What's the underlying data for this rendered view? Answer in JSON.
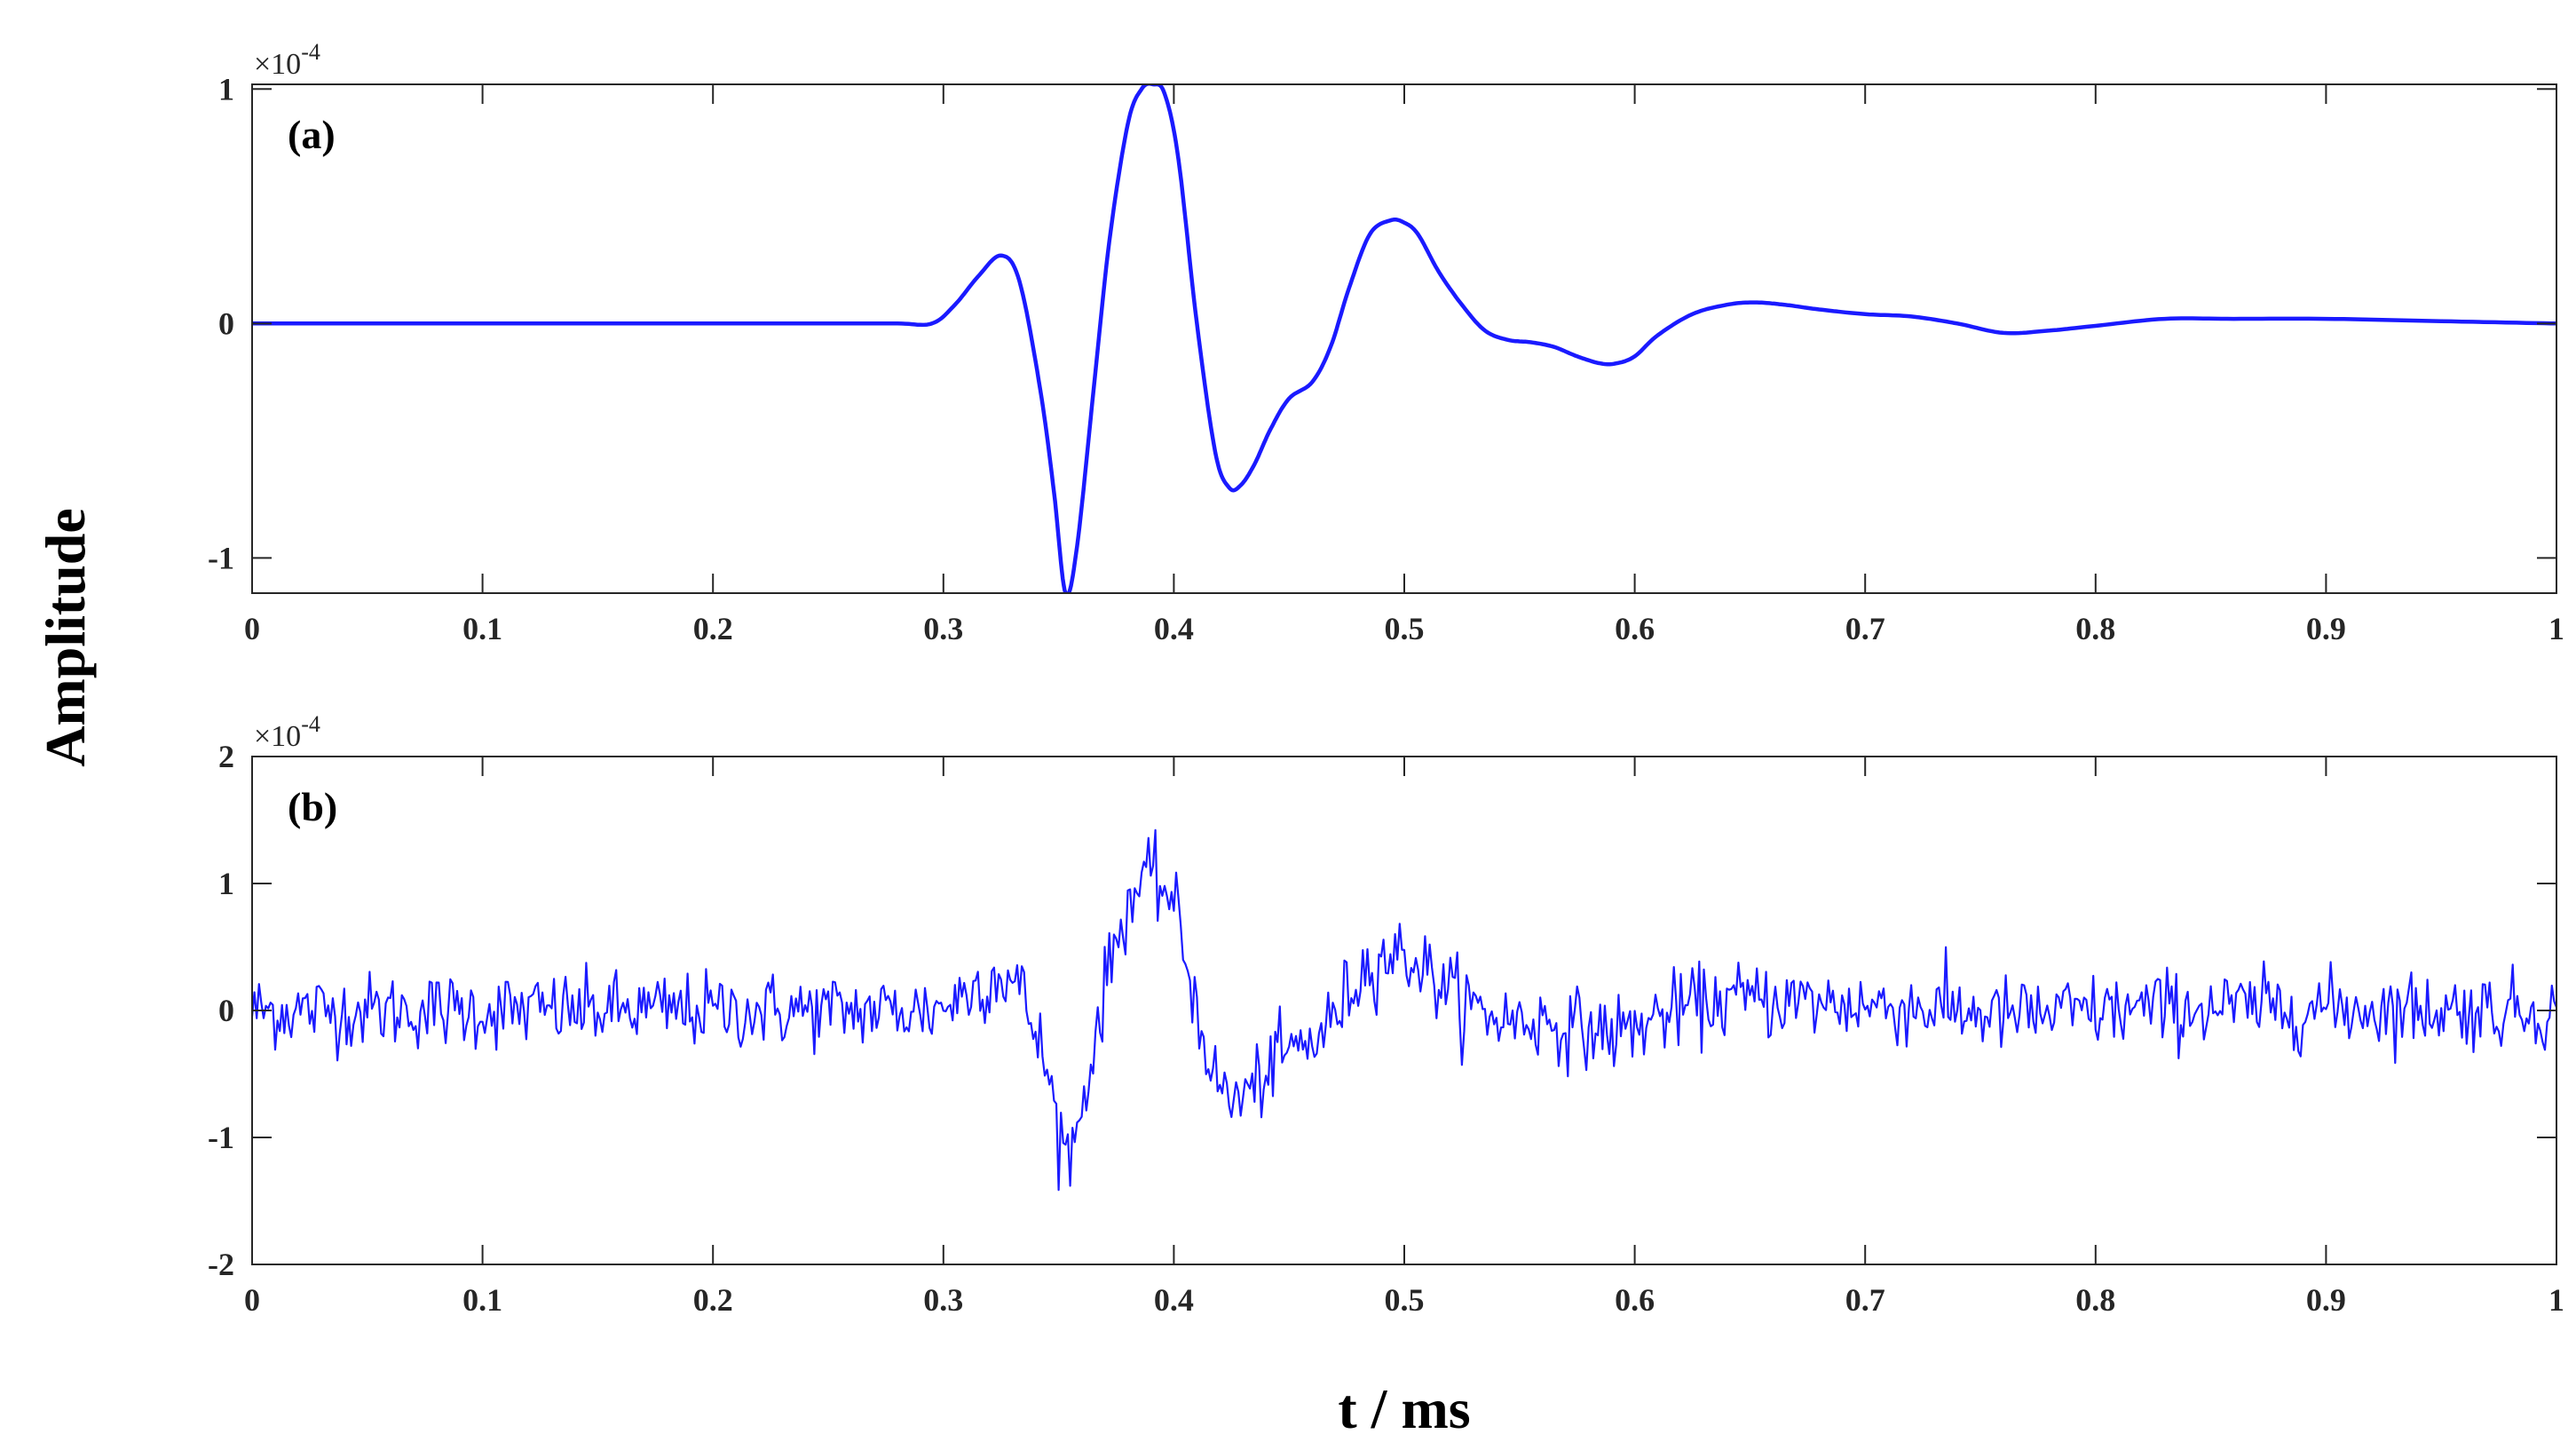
{
  "figure": {
    "ylabel": "Amplitude",
    "xlabel": "t / ms"
  },
  "chart_data": [
    {
      "type": "line",
      "panel_label": "(a)",
      "x_ticks": [
        "0",
        "0.1",
        "0.2",
        "0.3",
        "0.4",
        "0.5",
        "0.6",
        "0.7",
        "0.8",
        "0.9",
        "1"
      ],
      "y_ticks": [
        "-1",
        "0",
        "1"
      ],
      "y_exponent": {
        "base": "×10",
        "power": "-4"
      },
      "xlim": [
        0,
        1
      ],
      "ylim": [
        -1.15,
        1.02
      ],
      "grid": false,
      "series": [
        {
          "color": "#1a1aff",
          "x": [
            0,
            0.05,
            0.1,
            0.15,
            0.2,
            0.25,
            0.28,
            0.295,
            0.305,
            0.315,
            0.325,
            0.333,
            0.342,
            0.348,
            0.353,
            0.358,
            0.365,
            0.372,
            0.38,
            0.386,
            0.391,
            0.396,
            0.402,
            0.41,
            0.418,
            0.424,
            0.429,
            0.435,
            0.442,
            0.45,
            0.46,
            0.468,
            0.476,
            0.485,
            0.494,
            0.5,
            0.506,
            0.515,
            0.525,
            0.535,
            0.545,
            0.555,
            0.565,
            0.575,
            0.585,
            0.592,
            0.6,
            0.61,
            0.625,
            0.64,
            0.652,
            0.665,
            0.68,
            0.7,
            0.72,
            0.74,
            0.76,
            0.78,
            0.8,
            0.83,
            0.86,
            0.9,
            0.95,
            1.0
          ],
          "y": [
            0,
            0,
            0,
            0,
            0,
            0,
            0,
            0,
            0.08,
            0.2,
            0.29,
            0.18,
            -0.28,
            -0.72,
            -1.15,
            -0.95,
            -0.3,
            0.35,
            0.85,
            1.0,
            1.02,
            0.98,
            0.7,
            0.0,
            -0.55,
            -0.7,
            -0.69,
            -0.6,
            -0.45,
            -0.32,
            -0.25,
            -0.1,
            0.15,
            0.38,
            0.44,
            0.43,
            0.38,
            0.22,
            0.08,
            -0.03,
            -0.07,
            -0.08,
            -0.1,
            -0.14,
            -0.17,
            -0.17,
            -0.14,
            -0.05,
            0.04,
            0.08,
            0.09,
            0.08,
            0.06,
            0.04,
            0.03,
            0.0,
            -0.04,
            -0.03,
            -0.01,
            0.02,
            0.02,
            0.02,
            0.01,
            0.0
          ]
        }
      ]
    },
    {
      "type": "line",
      "panel_label": "(b)",
      "x_ticks": [
        "0",
        "0.1",
        "0.2",
        "0.3",
        "0.4",
        "0.5",
        "0.6",
        "0.7",
        "0.8",
        "0.9",
        "1"
      ],
      "y_ticks": [
        "-2",
        "-1",
        "0",
        "1",
        "2"
      ],
      "y_exponent": {
        "base": "×10",
        "power": "-4"
      },
      "xlim": [
        0,
        1
      ],
      "ylim": [
        -2,
        2
      ],
      "grid": false,
      "series": [
        {
          "color": "#1a1aff",
          "description_of_noise": "",
          "x": [
            0,
            0.05,
            0.1,
            0.15,
            0.2,
            0.25,
            0.28,
            0.295,
            0.305,
            0.315,
            0.325,
            0.333,
            0.342,
            0.348,
            0.353,
            0.358,
            0.365,
            0.372,
            0.38,
            0.386,
            0.391,
            0.396,
            0.402,
            0.41,
            0.418,
            0.424,
            0.429,
            0.435,
            0.442,
            0.45,
            0.46,
            0.468,
            0.476,
            0.485,
            0.494,
            0.5,
            0.506,
            0.515,
            0.525,
            0.535,
            0.545,
            0.555,
            0.565,
            0.575,
            0.585,
            0.592,
            0.6,
            0.61,
            0.625,
            0.64,
            0.652,
            0.665,
            0.68,
            0.7,
            0.72,
            0.74,
            0.76,
            0.78,
            0.8,
            0.83,
            0.86,
            0.9,
            0.95,
            1.0
          ],
          "y": [
            0,
            0,
            0,
            0,
            0,
            0,
            0,
            0,
            0.08,
            0.2,
            0.29,
            0.18,
            -0.28,
            -0.72,
            -1.15,
            -0.95,
            -0.3,
            0.35,
            0.85,
            1.0,
            1.02,
            0.98,
            0.7,
            0.0,
            -0.55,
            -0.7,
            -0.69,
            -0.6,
            -0.45,
            -0.32,
            -0.25,
            -0.1,
            0.15,
            0.38,
            0.44,
            0.43,
            0.38,
            0.22,
            0.08,
            -0.03,
            -0.07,
            -0.08,
            -0.1,
            -0.14,
            -0.17,
            -0.17,
            -0.14,
            -0.05,
            0.04,
            0.08,
            0.09,
            0.08,
            0.06,
            0.04,
            0.03,
            0.0,
            -0.04,
            -0.03,
            -0.01,
            0.02,
            0.02,
            0.02,
            0.01,
            0.0
          ],
          "noise_amplitude": 0.15,
          "samples": 1000
        }
      ]
    }
  ]
}
